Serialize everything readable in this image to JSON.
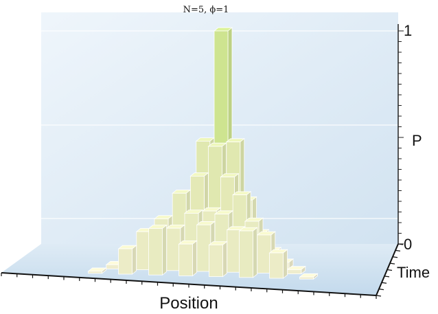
{
  "chart_data": {
    "type": "bar",
    "title": "N=5, ϕ=1",
    "xlabel": "Position",
    "ylabel": "Time",
    "zlabel": "P",
    "zlim": [
      0,
      1
    ],
    "z_ticks": [
      "0",
      "1"
    ],
    "grid": true,
    "bars": [
      {
        "x": 0,
        "t": 0,
        "p": 1.0
      },
      {
        "x": -1,
        "t": 1,
        "p": 0.5
      },
      {
        "x": 1,
        "t": 1,
        "p": 0.5
      },
      {
        "x": -2,
        "t": 2,
        "p": 0.25
      },
      {
        "x": 0,
        "t": 2,
        "p": 0.5
      },
      {
        "x": 2,
        "t": 2,
        "p": 0.25
      },
      {
        "x": -3,
        "t": 3,
        "p": 0.12
      },
      {
        "x": -1,
        "t": 3,
        "p": 0.38
      },
      {
        "x": 1,
        "t": 3,
        "p": 0.38
      },
      {
        "x": 3,
        "t": 3,
        "p": 0.12
      },
      {
        "x": -4,
        "t": 4,
        "p": 0.06
      },
      {
        "x": -2,
        "t": 4,
        "p": 0.32
      },
      {
        "x": 0,
        "t": 4,
        "p": 0.24
      },
      {
        "x": 2,
        "t": 4,
        "p": 0.32
      },
      {
        "x": 4,
        "t": 4,
        "p": 0.06
      },
      {
        "x": -5,
        "t": 5,
        "p": 0.03
      },
      {
        "x": -3,
        "t": 5,
        "p": 0.22
      },
      {
        "x": -1,
        "t": 5,
        "p": 0.25
      },
      {
        "x": 1,
        "t": 5,
        "p": 0.25
      },
      {
        "x": 3,
        "t": 5,
        "p": 0.22
      },
      {
        "x": 5,
        "t": 5,
        "p": 0.03
      },
      {
        "x": -6,
        "t": 6,
        "p": 0.02
      },
      {
        "x": -4,
        "t": 6,
        "p": 0.18
      },
      {
        "x": -2,
        "t": 6,
        "p": 0.2
      },
      {
        "x": 0,
        "t": 6,
        "p": 0.22
      },
      {
        "x": 2,
        "t": 6,
        "p": 0.2
      },
      {
        "x": 4,
        "t": 6,
        "p": 0.18
      },
      {
        "x": 6,
        "t": 6,
        "p": 0.02
      },
      {
        "x": -7,
        "t": 7,
        "p": 0.01
      },
      {
        "x": -5,
        "t": 7,
        "p": 0.12
      },
      {
        "x": -3,
        "t": 7,
        "p": 0.22
      },
      {
        "x": -1,
        "t": 7,
        "p": 0.15
      },
      {
        "x": 1,
        "t": 7,
        "p": 0.15
      },
      {
        "x": 3,
        "t": 7,
        "p": 0.22
      },
      {
        "x": 5,
        "t": 7,
        "p": 0.12
      },
      {
        "x": 7,
        "t": 7,
        "p": 0.01
      }
    ]
  }
}
